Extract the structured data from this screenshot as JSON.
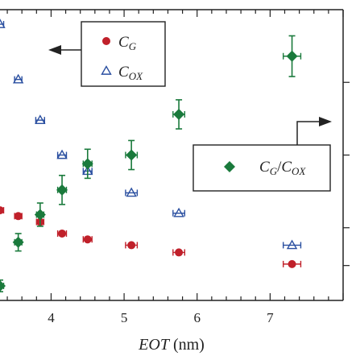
{
  "chart_data": {
    "type": "scatter",
    "xlabel": "EOT",
    "xlabel_unit": "(nm)",
    "xlim": [
      3.3,
      8.0
    ],
    "x_ticks": [
      4,
      5,
      6,
      7
    ],
    "y_left_range": [
      0,
      1
    ],
    "y_right_range": [
      0,
      1
    ],
    "legends": [
      {
        "position": "top-left",
        "axis_arrow": "left",
        "entries": [
          {
            "marker": "circle",
            "color": "#c0202a",
            "label_main": "C",
            "label_sub": "G"
          },
          {
            "marker": "triangle",
            "color": "#2a4fa0",
            "label_main": "C",
            "label_sub": "OX"
          }
        ]
      },
      {
        "position": "center-right",
        "axis_arrow": "right",
        "entries": [
          {
            "marker": "diamond",
            "color": "#1a7a3c",
            "label_main": "C",
            "label_sub": "G",
            "label_sep": "/",
            "label_main2": "C",
            "label_sub2": "OX"
          }
        ]
      }
    ],
    "series": [
      {
        "name": "C_G",
        "marker": "circle",
        "color": "#c0202a",
        "axis": "left",
        "points": [
          {
            "x": 3.3,
            "y": 0.31,
            "xerr": 0.05
          },
          {
            "x": 3.55,
            "y": 0.29,
            "xerr": 0.05
          },
          {
            "x": 3.85,
            "y": 0.27,
            "xerr": 0.05
          },
          {
            "x": 4.15,
            "y": 0.23,
            "xerr": 0.06
          },
          {
            "x": 4.5,
            "y": 0.21,
            "xerr": 0.06
          },
          {
            "x": 5.1,
            "y": 0.19,
            "xerr": 0.08
          },
          {
            "x": 5.75,
            "y": 0.165,
            "xerr": 0.08
          },
          {
            "x": 7.3,
            "y": 0.125,
            "xerr": 0.12
          }
        ]
      },
      {
        "name": "C_OX",
        "marker": "triangle",
        "color": "#2a4fa0",
        "axis": "left",
        "points": [
          {
            "x": 3.3,
            "y": 0.95,
            "xerr": 0.05
          },
          {
            "x": 3.55,
            "y": 0.76,
            "xerr": 0.05
          },
          {
            "x": 3.85,
            "y": 0.62,
            "xerr": 0.06
          },
          {
            "x": 4.15,
            "y": 0.5,
            "xerr": 0.06
          },
          {
            "x": 4.5,
            "y": 0.445,
            "xerr": 0.06
          },
          {
            "x": 5.1,
            "y": 0.37,
            "xerr": 0.08
          },
          {
            "x": 5.75,
            "y": 0.3,
            "xerr": 0.08
          },
          {
            "x": 7.3,
            "y": 0.19,
            "xerr": 0.12
          }
        ]
      },
      {
        "name": "C_G/C_OX",
        "marker": "diamond",
        "color": "#1a7a3c",
        "axis": "right",
        "points": [
          {
            "x": 3.3,
            "y": 0.05,
            "xerr": 0.05,
            "yerr": 0.02
          },
          {
            "x": 3.55,
            "y": 0.2,
            "xerr": 0.05,
            "yerr": 0.03
          },
          {
            "x": 3.85,
            "y": 0.295,
            "xerr": 0.05,
            "yerr": 0.04
          },
          {
            "x": 4.15,
            "y": 0.38,
            "xerr": 0.06,
            "yerr": 0.05
          },
          {
            "x": 4.5,
            "y": 0.47,
            "xerr": 0.06,
            "yerr": 0.05
          },
          {
            "x": 5.1,
            "y": 0.5,
            "xerr": 0.08,
            "yerr": 0.05
          },
          {
            "x": 5.75,
            "y": 0.64,
            "xerr": 0.08,
            "yerr": 0.05
          },
          {
            "x": 7.3,
            "y": 0.84,
            "xerr": 0.12,
            "yerr": 0.07
          }
        ]
      }
    ]
  }
}
